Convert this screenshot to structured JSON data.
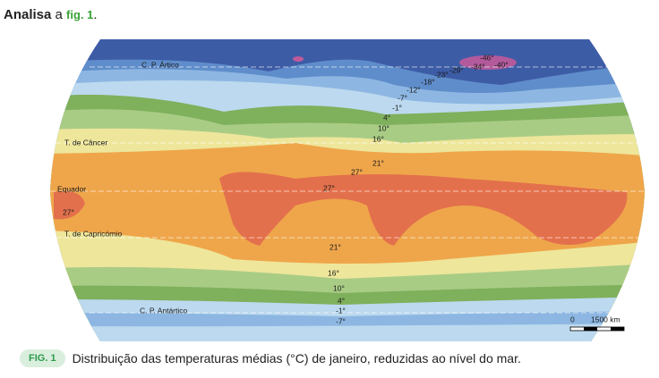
{
  "heading": {
    "bold": "Analisa",
    "text": "a",
    "ref": "fig. 1",
    "end": "."
  },
  "map": {
    "lines": [
      "C. P. Ártico",
      "T. de Câncer",
      "Equador",
      "T. de Capricórnio",
      "C. P. Antártico"
    ],
    "isotherms": [
      "-46°",
      "-40°",
      "-34°",
      "-29°",
      "-23°",
      "-18°",
      "-12°",
      "-7°",
      "-1°",
      "4°",
      "10°",
      "16°",
      "21°",
      "27°",
      "27°",
      "27°",
      "21°",
      "16°",
      "10°",
      "4°",
      "-1°",
      "-7°"
    ]
  },
  "scale": {
    "zero": "0",
    "distance": "1500 km"
  },
  "caption": {
    "label": "FIG. 1",
    "text": "Distribuição das temperaturas médias (°C) de janeiro, reduzidas ao nível do mar."
  }
}
